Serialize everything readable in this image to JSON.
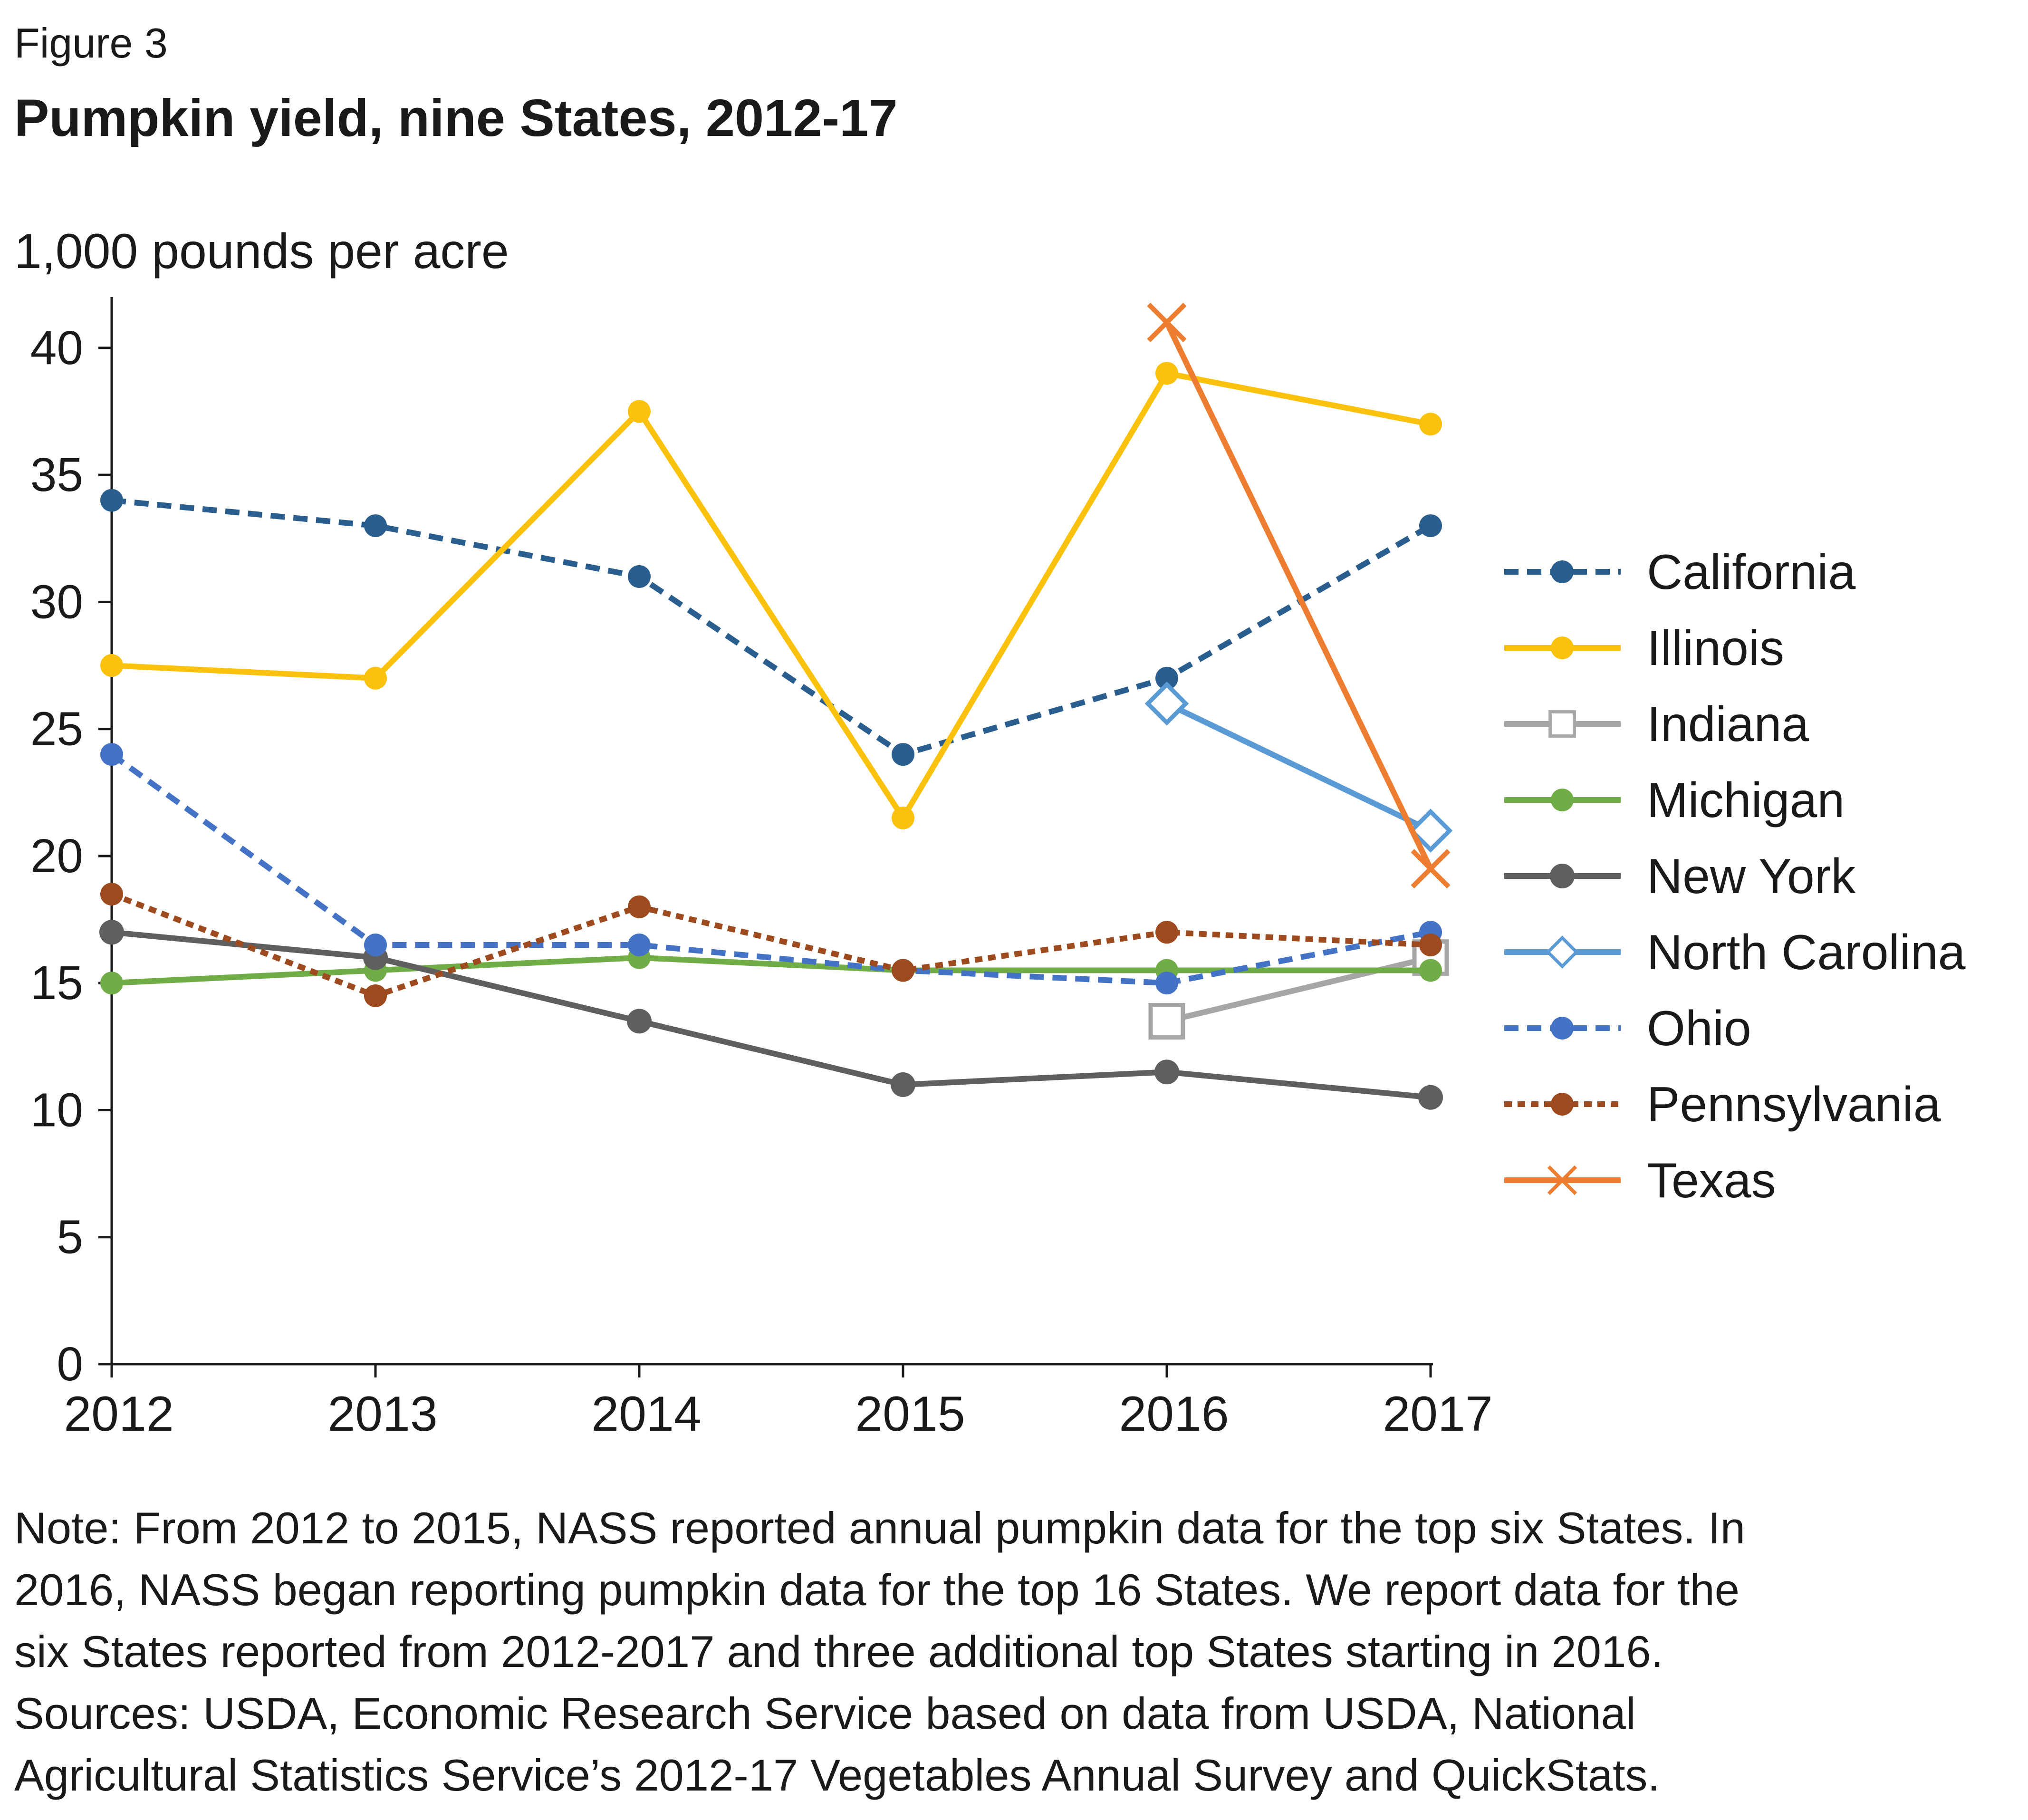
{
  "header": {
    "figure_label": "Figure 3",
    "title": "Pumpkin yield, nine States, 2012-17"
  },
  "chart_data": {
    "type": "line",
    "title": "Pumpkin yield, nine States, 2012-17",
    "ylabel": "1,000 pounds per acre",
    "xlabel": "",
    "x": [
      "2012",
      "2013",
      "2014",
      "2015",
      "2016",
      "2017"
    ],
    "ylim": [
      0,
      42
    ],
    "yticks": [
      0,
      5,
      10,
      15,
      20,
      25,
      30,
      35,
      40
    ],
    "grid": false,
    "legend_position": "right",
    "series": [
      {
        "name": "California",
        "color": "#2a5e8f",
        "dash": true,
        "marker": "circle",
        "values": [
          34,
          33,
          31,
          24,
          27,
          33
        ]
      },
      {
        "name": "Illinois",
        "color": "#fbc20d",
        "dash": false,
        "marker": "circle",
        "values": [
          27.5,
          27,
          37.5,
          21.5,
          39,
          37
        ]
      },
      {
        "name": "Indiana",
        "color": "#a6a6a6",
        "dash": false,
        "marker": "square-open",
        "values": [
          null,
          null,
          null,
          null,
          13.5,
          16
        ]
      },
      {
        "name": "Michigan",
        "color": "#71ad47",
        "dash": false,
        "marker": "circle",
        "values": [
          15,
          15.5,
          16,
          15.5,
          15.5,
          15.5
        ]
      },
      {
        "name": "New York",
        "color": "#5f5f5f",
        "dash": false,
        "marker": "circle-large",
        "values": [
          17,
          16,
          13.5,
          11,
          11.5,
          10.5
        ]
      },
      {
        "name": "North Carolina",
        "color": "#5b9bd5",
        "dash": false,
        "marker": "diamond-open",
        "values": [
          null,
          null,
          null,
          null,
          26,
          21
        ]
      },
      {
        "name": "Ohio",
        "color": "#4472c4",
        "dash": true,
        "marker": "circle",
        "values": [
          24,
          16.5,
          16.5,
          15.5,
          15,
          17
        ]
      },
      {
        "name": "Pennsylvania",
        "color": "#9e4a1f",
        "dash": "dot",
        "marker": "circle",
        "values": [
          18.5,
          14.5,
          18,
          15.5,
          17,
          16.5
        ]
      },
      {
        "name": "Texas",
        "color": "#ed7d31",
        "dash": false,
        "marker": "x",
        "values": [
          null,
          null,
          null,
          null,
          41,
          19.5
        ]
      }
    ]
  },
  "notes": [
    "Note: From 2012 to 2015, NASS reported annual pumpkin data for the top six States. In",
    "2016, NASS began reporting pumpkin data for the top 16 States. We report data for the",
    "six States reported from 2012-2017 and three additional top States starting in 2016.",
    "Sources: USDA, Economic Research Service based on data from USDA, National",
    "Agricultural Statistics Service’s 2012-17 Vegetables Annual Survey and QuickStats."
  ]
}
